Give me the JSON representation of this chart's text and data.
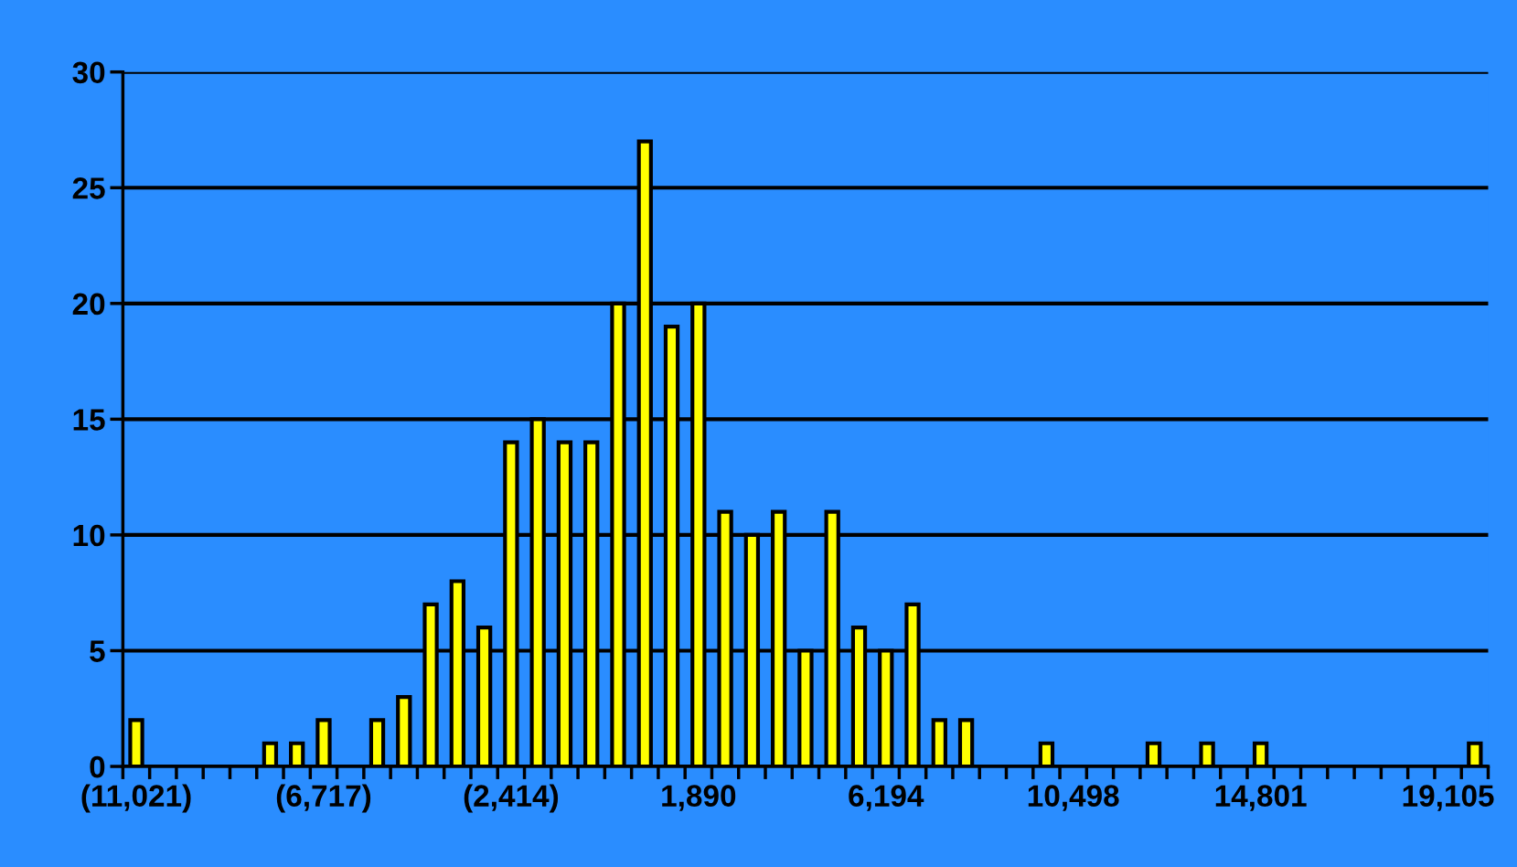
{
  "chart_data": {
    "type": "bar",
    "categories": [
      "(11,021)",
      null,
      null,
      null,
      null,
      null,
      null,
      "(6,717)",
      null,
      null,
      null,
      null,
      null,
      null,
      "(2,414)",
      null,
      null,
      null,
      null,
      null,
      null,
      "1,890",
      null,
      null,
      null,
      null,
      null,
      null,
      "6,194",
      null,
      null,
      null,
      null,
      null,
      null,
      "10,498",
      null,
      null,
      null,
      null,
      null,
      null,
      "14,801",
      null,
      null,
      null,
      null,
      null,
      null,
      "19,105",
      null
    ],
    "values": [
      2,
      0,
      0,
      0,
      0,
      1,
      1,
      2,
      0,
      2,
      3,
      7,
      8,
      6,
      14,
      15,
      14,
      14,
      20,
      27,
      19,
      20,
      11,
      10,
      11,
      5,
      11,
      6,
      5,
      7,
      2,
      2,
      0,
      0,
      1,
      0,
      0,
      0,
      1,
      0,
      1,
      0,
      1,
      0,
      0,
      0,
      0,
      0,
      0,
      0,
      1
    ],
    "color": "#ffff00",
    "ylim": [
      0,
      30
    ],
    "yticks": [
      0,
      5,
      10,
      15,
      20,
      25,
      30
    ],
    "grid": "y",
    "legend": false
  }
}
